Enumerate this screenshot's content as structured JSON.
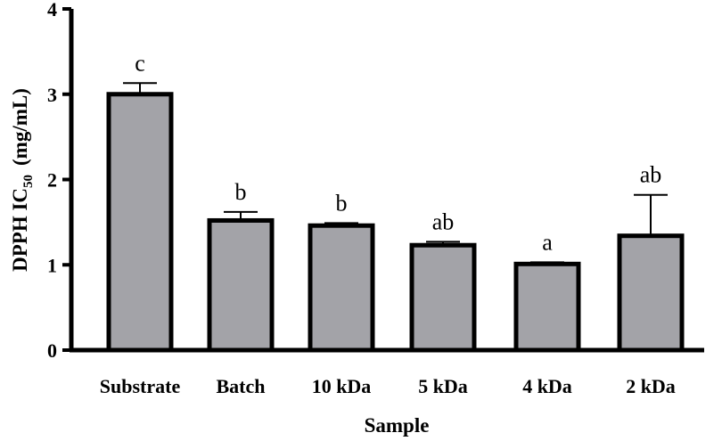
{
  "chart_data": {
    "type": "bar",
    "categories": [
      "Substrate",
      "Batch",
      "10 kDa",
      "5 kDa",
      "4 kDa",
      "2 kDa"
    ],
    "values": [
      3.0,
      1.52,
      1.46,
      1.23,
      1.01,
      1.34
    ],
    "error_upper": [
      0.13,
      0.1,
      0.03,
      0.04,
      0.02,
      0.48
    ],
    "significance_labels": [
      "c",
      "b",
      "b",
      "ab",
      "a",
      "ab"
    ],
    "xlabel": "Sample",
    "ylabel": "DPPH IC",
    "ylabel_subscript": "50",
    "ylabel_unit": "(mg/mL)",
    "ylim": [
      0,
      4
    ],
    "yticks": [
      "0",
      "1",
      "2",
      "3",
      "4"
    ],
    "bar_color": "#a3a3a8",
    "edge_color": "#000000",
    "grid": false
  }
}
